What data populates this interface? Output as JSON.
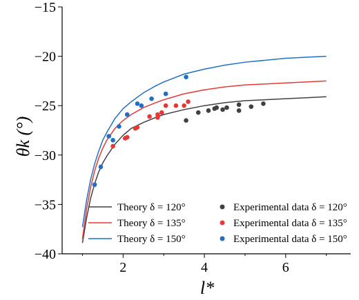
{
  "chart_data": {
    "type": "line",
    "title": "",
    "xlabel": "l*",
    "ylabel": "θk (°)",
    "xlim": [
      0.5,
      7.6
    ],
    "ylim": [
      -40,
      -15
    ],
    "xticks": [
      2,
      4,
      6
    ],
    "yticks": [
      -40,
      -35,
      -30,
      -25,
      -20,
      -15
    ],
    "xtick_labels": [
      "2",
      "4",
      "6"
    ],
    "ytick_labels": [
      "−40",
      "−35",
      "−30",
      "−25",
      "−20",
      "−15"
    ],
    "grid": false,
    "legend_position": "bottom-center",
    "series": [
      {
        "name": "Theory δ = 120°",
        "kind": "line",
        "color": "#404040",
        "x": [
          1.0,
          1.1,
          1.2,
          1.3,
          1.4,
          1.5,
          1.6,
          1.8,
          2.0,
          2.2,
          2.5,
          2.8,
          3.0,
          3.5,
          4.0,
          4.5,
          5.0,
          5.5,
          6.0,
          6.5,
          7.0
        ],
        "y": [
          -38.9,
          -36.4,
          -34.4,
          -32.9,
          -31.7,
          -30.8,
          -30.1,
          -28.9,
          -28.0,
          -27.3,
          -26.7,
          -26.2,
          -25.9,
          -25.4,
          -25.0,
          -24.7,
          -24.5,
          -24.4,
          -24.3,
          -24.2,
          -24.1
        ]
      },
      {
        "name": "Theory δ = 135°",
        "kind": "line",
        "color": "#e53935",
        "x": [
          1.0,
          1.1,
          1.2,
          1.3,
          1.4,
          1.5,
          1.6,
          1.8,
          2.0,
          2.2,
          2.5,
          2.8,
          3.0,
          3.5,
          4.0,
          4.5,
          5.0,
          5.5,
          6.0,
          6.5,
          7.0
        ],
        "y": [
          -38.5,
          -35.5,
          -33.3,
          -31.6,
          -30.3,
          -29.3,
          -28.5,
          -27.3,
          -26.5,
          -25.9,
          -25.2,
          -24.7,
          -24.4,
          -23.8,
          -23.4,
          -23.1,
          -22.9,
          -22.8,
          -22.7,
          -22.6,
          -22.5
        ]
      },
      {
        "name": "Theory δ = 150°",
        "kind": "line",
        "color": "#1f6fc8",
        "x": [
          1.0,
          1.1,
          1.2,
          1.3,
          1.4,
          1.5,
          1.6,
          1.8,
          2.0,
          2.2,
          2.5,
          2.8,
          3.0,
          3.5,
          4.0,
          4.5,
          5.0,
          5.5,
          6.0,
          6.5,
          7.0
        ],
        "y": [
          -37.3,
          -34.6,
          -32.5,
          -30.9,
          -29.6,
          -28.5,
          -27.7,
          -26.3,
          -25.3,
          -24.6,
          -23.7,
          -23.0,
          -22.6,
          -21.8,
          -21.3,
          -20.9,
          -20.6,
          -20.4,
          -20.2,
          -20.1,
          -20.0
        ]
      },
      {
        "name": "Experimental data δ = 120°",
        "kind": "scatter",
        "color": "#404040",
        "x": [
          3.55,
          3.85,
          4.1,
          4.25,
          4.3,
          4.45,
          4.55,
          4.85,
          4.85,
          5.15,
          5.45
        ],
        "y": [
          -26.5,
          -25.7,
          -25.5,
          -25.3,
          -25.2,
          -25.4,
          -25.2,
          -25.5,
          -24.9,
          -25.1,
          -24.8
        ]
      },
      {
        "name": "Experimental data δ = 135°",
        "kind": "scatter",
        "color": "#e53935",
        "x": [
          1.75,
          2.05,
          2.1,
          2.3,
          2.35,
          2.65,
          2.85,
          2.85,
          2.95,
          3.05,
          3.3,
          3.5,
          3.6
        ],
        "y": [
          -29.1,
          -28.3,
          -28.2,
          -27.3,
          -27.2,
          -26.1,
          -26.2,
          -25.9,
          -25.7,
          -25.0,
          -25.0,
          -25.0,
          -24.6
        ]
      },
      {
        "name": "Experimental data δ = 150°",
        "kind": "scatter",
        "color": "#1f6fc8",
        "x": [
          1.3,
          1.45,
          1.65,
          1.75,
          1.9,
          2.1,
          2.35,
          2.45,
          2.7,
          3.05,
          3.55
        ],
        "y": [
          -33.0,
          -31.2,
          -28.1,
          -28.5,
          -27.1,
          -25.9,
          -24.8,
          -25.0,
          -24.3,
          -23.8,
          -22.1
        ]
      }
    ]
  }
}
